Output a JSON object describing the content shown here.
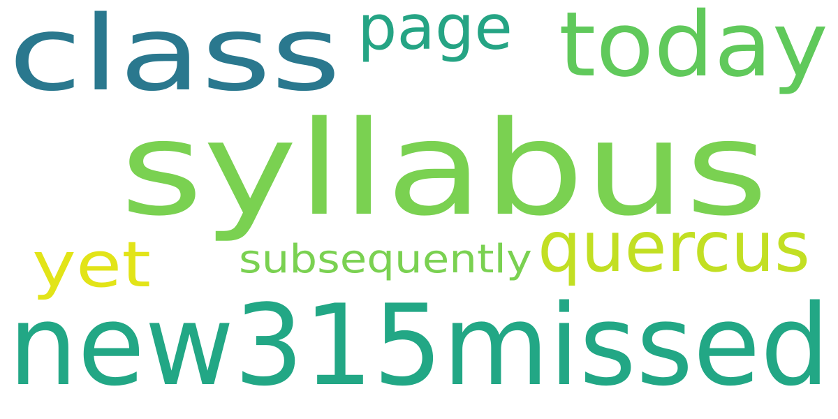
{
  "words": [
    {
      "text": "class",
      "color": "#2a788e"
    },
    {
      "text": "page",
      "color": "#25a484"
    },
    {
      "text": "today",
      "color": "#60c95b"
    },
    {
      "text": "syllabus",
      "color": "#7ad151"
    },
    {
      "text": "yet",
      "color": "#e2e418"
    },
    {
      "text": "subsequently",
      "color": "#7ad151"
    },
    {
      "text": "quercus",
      "color": "#c2df23"
    },
    {
      "text": "new315missed",
      "color": "#22a785"
    }
  ]
}
